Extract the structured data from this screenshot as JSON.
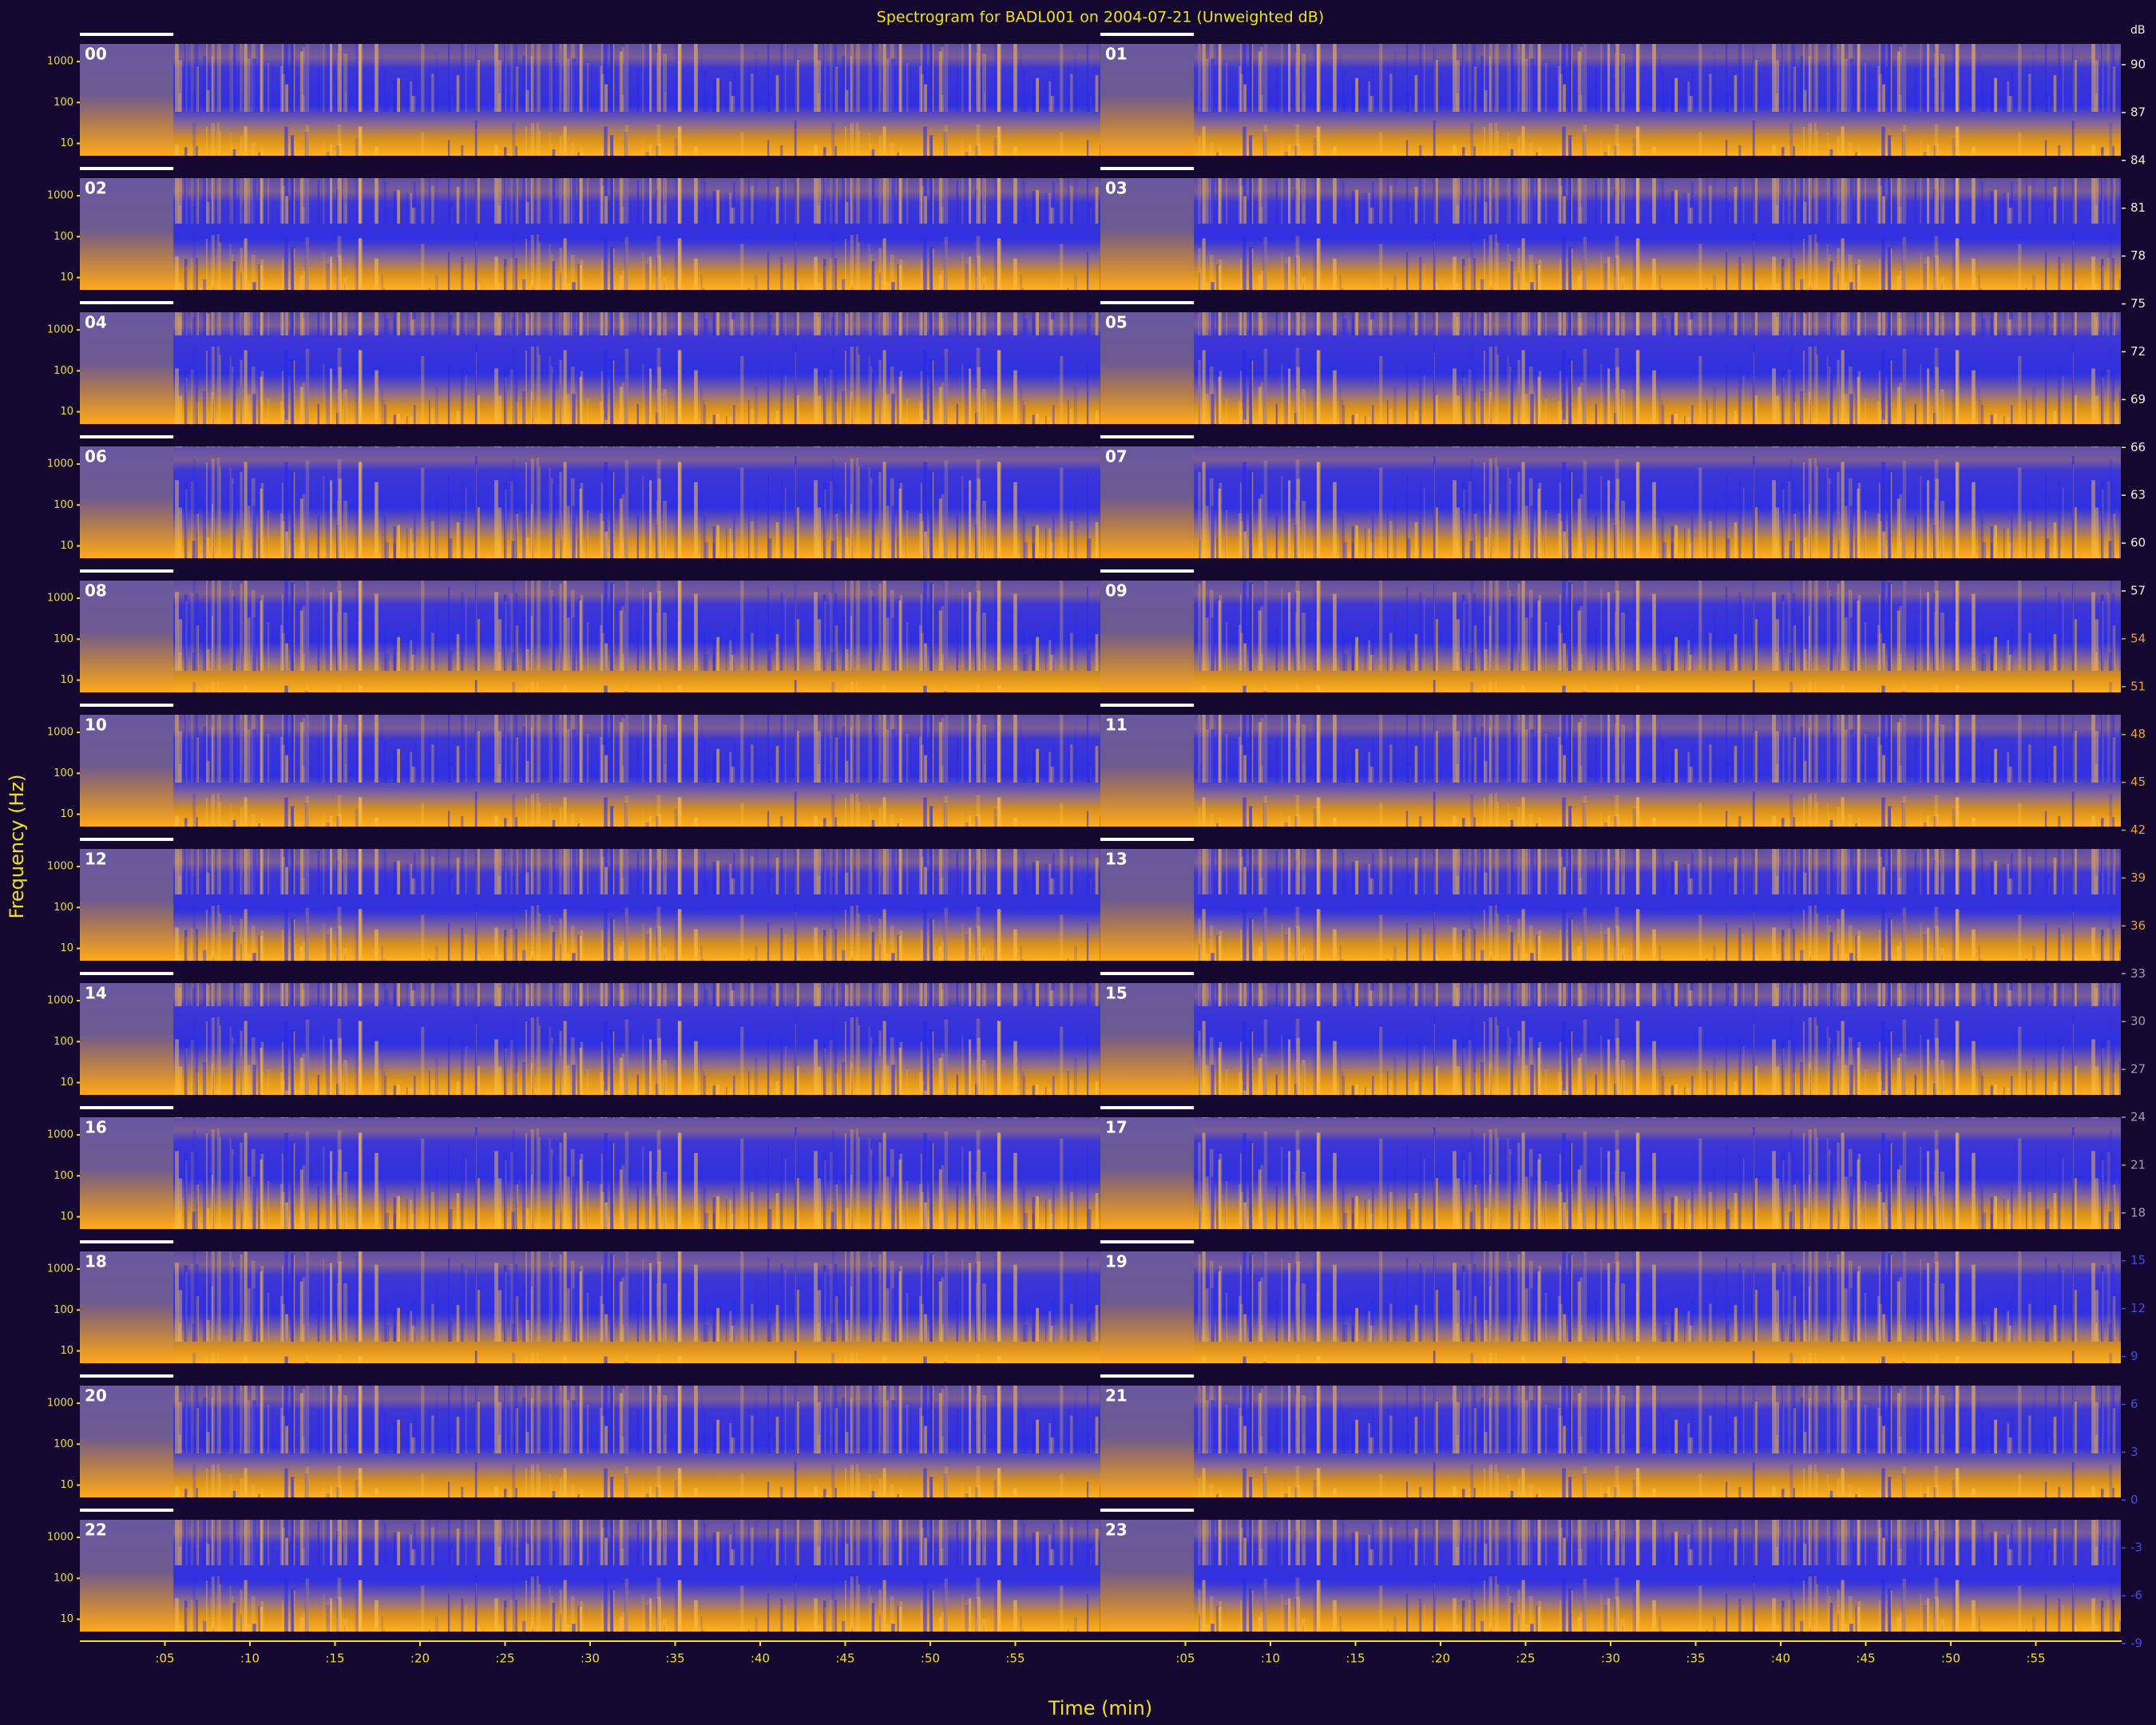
{
  "chart_data": {
    "type": "spectrogram",
    "title": "Spectrogram for BADL001 on 2004-07-21 (Unweighted dB)",
    "x_label": "Time (min)",
    "y_label": "Frequency (Hz)",
    "panels": [
      "00",
      "01",
      "02",
      "03",
      "04",
      "05",
      "06",
      "07",
      "08",
      "09",
      "10",
      "11",
      "12",
      "13",
      "14",
      "15",
      "16",
      "17",
      "18",
      "19",
      "20",
      "21",
      "22",
      "23"
    ],
    "columns": 2,
    "xlim": [
      0,
      60
    ],
    "xticks": [
      {
        "value": 5,
        "label": ":05"
      },
      {
        "value": 10,
        "label": ":10"
      },
      {
        "value": 15,
        "label": ":15"
      },
      {
        "value": 20,
        "label": ":20"
      },
      {
        "value": 25,
        "label": ":25"
      },
      {
        "value": 30,
        "label": ":30"
      },
      {
        "value": 35,
        "label": ":35"
      },
      {
        "value": 40,
        "label": ":40"
      },
      {
        "value": 45,
        "label": ":45"
      },
      {
        "value": 50,
        "label": ":50"
      },
      {
        "value": 55,
        "label": ":55"
      }
    ],
    "ylim": [
      5,
      2700
    ],
    "y_log": true,
    "yticks": [
      1000,
      100,
      10
    ],
    "colorbar": {
      "label": "dB",
      "lim": [
        -9,
        90
      ],
      "ticks": [
        90,
        87,
        84,
        81,
        78,
        75,
        72,
        69,
        66,
        63,
        60,
        57,
        54,
        51,
        48,
        45,
        42,
        39,
        36,
        33,
        30,
        27,
        24,
        21,
        18,
        15,
        12,
        9,
        6,
        3,
        0,
        -3,
        -6,
        -9
      ]
    }
  }
}
